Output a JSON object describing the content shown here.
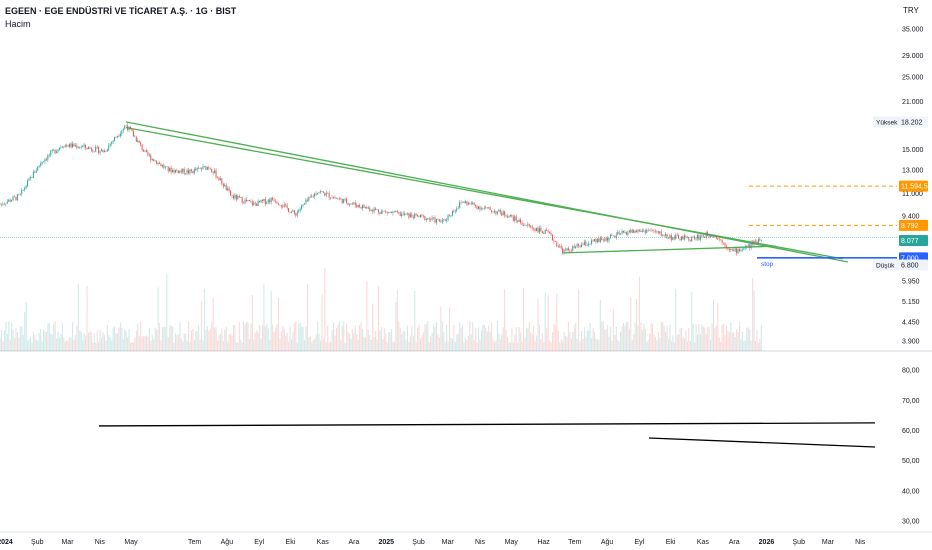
{
  "header": {
    "symbol_title": "EGEEN · EGE ENDÜSTRİ VE TİCARET A.Ş. · 1G · BIST",
    "volume_label": "Hacim",
    "currency": "TRY"
  },
  "chart_data": {
    "type": "candlestick",
    "scale": "log",
    "price_axis_ticks": [
      35000,
      29000,
      25000,
      21000,
      15000,
      13000,
      11000,
      9400,
      8077,
      6800,
      5950,
      5150,
      4450,
      3900
    ],
    "price_axis_tick_labels": [
      "35.000",
      "29.000",
      "25.000",
      "21.000",
      "15.000",
      "13.000",
      "11.000",
      "9.400",
      "8.077",
      "6.800",
      "5.950",
      "5.150",
      "4.450",
      "3.900"
    ],
    "x_axis_labels": [
      "2024",
      "Şub",
      "Mar",
      "Nis",
      "May",
      "Tem",
      "Ağu",
      "Eyl",
      "Eki",
      "Kas",
      "Ara",
      "2025",
      "Şub",
      "Mar",
      "Nis",
      "May",
      "Haz",
      "Tem",
      "Ağu",
      "Eyl",
      "Eki",
      "Kas",
      "Ara",
      "2026",
      "Şub",
      "Mar",
      "Nis"
    ],
    "price_path": [
      {
        "date": "2024-01-01",
        "price": 10200
      },
      {
        "date": "2024-01-20",
        "price": 10800
      },
      {
        "date": "2024-02-10",
        "price": 13800
      },
      {
        "date": "2024-03-01",
        "price": 15500
      },
      {
        "date": "2024-03-20",
        "price": 15300
      },
      {
        "date": "2024-04-10",
        "price": 14800
      },
      {
        "date": "2024-05-01",
        "price": 17800
      },
      {
        "date": "2024-05-20",
        "price": 14500
      },
      {
        "date": "2024-06-10",
        "price": 13000
      },
      {
        "date": "2024-07-01",
        "price": 12800
      },
      {
        "date": "2024-07-20",
        "price": 13300
      },
      {
        "date": "2024-08-10",
        "price": 10800
      },
      {
        "date": "2024-09-01",
        "price": 10200
      },
      {
        "date": "2024-09-20",
        "price": 10600
      },
      {
        "date": "2024-10-10",
        "price": 9500
      },
      {
        "date": "2024-11-01",
        "price": 11200
      },
      {
        "date": "2024-11-20",
        "price": 10600
      },
      {
        "date": "2024-12-10",
        "price": 10100
      },
      {
        "date": "2025-01-01",
        "price": 9700
      },
      {
        "date": "2025-01-20",
        "price": 9500
      },
      {
        "date": "2025-02-10",
        "price": 9300
      },
      {
        "date": "2025-03-01",
        "price": 9000
      },
      {
        "date": "2025-03-20",
        "price": 10400
      },
      {
        "date": "2025-04-10",
        "price": 9900
      },
      {
        "date": "2025-05-01",
        "price": 9500
      },
      {
        "date": "2025-05-20",
        "price": 8800
      },
      {
        "date": "2025-06-10",
        "price": 8300
      },
      {
        "date": "2025-06-25",
        "price": 7300
      },
      {
        "date": "2025-07-15",
        "price": 7700
      },
      {
        "date": "2025-08-05",
        "price": 8000
      },
      {
        "date": "2025-08-25",
        "price": 8400
      },
      {
        "date": "2025-09-15",
        "price": 8500
      },
      {
        "date": "2025-10-05",
        "price": 8100
      },
      {
        "date": "2025-10-25",
        "price": 8000
      },
      {
        "date": "2025-11-15",
        "price": 8300
      },
      {
        "date": "2025-12-05",
        "price": 7300
      },
      {
        "date": "2025-12-20",
        "price": 7600
      },
      {
        "date": "2026-01-01",
        "price": 8077
      }
    ],
    "price_labels": [
      {
        "text": "Yüksek",
        "value": "18.202",
        "price": 18202,
        "style": "gray"
      },
      {
        "text": "",
        "value": "11.594,5",
        "price": 11594.5,
        "style": "orange"
      },
      {
        "text": "",
        "value": "8.792",
        "price": 8792,
        "style": "orange"
      },
      {
        "text": "",
        "value": "8.077",
        "price": 8077,
        "style": "green"
      },
      {
        "text": "",
        "value": "7.000",
        "price": 7000,
        "style": "blue"
      },
      {
        "text": "Düşük",
        "value": "6.800",
        "price": 6800,
        "style": "gray"
      }
    ],
    "annotations": {
      "stop_label": "stop",
      "stop_price": 7000,
      "target_levels": [
        11594.5,
        8792
      ],
      "trendlines": [
        {
          "color": "#4caf50",
          "from": {
            "date": "2024-05-01",
            "price": 18202
          },
          "to": {
            "date": "2026-03-25",
            "price": 6800
          }
        },
        {
          "color": "#4caf50",
          "from": {
            "date": "2024-05-01",
            "price": 17500
          },
          "to": {
            "date": "2026-03-20",
            "price": 6950
          }
        },
        {
          "color": "#4caf50",
          "from": {
            "date": "2025-06-25",
            "price": 7250
          },
          "to": {
            "date": "2026-01-15",
            "price": 7600
          }
        }
      ]
    },
    "oscillator": {
      "y_ticks": [
        80,
        70,
        60,
        50,
        40,
        30
      ],
      "y_tick_labels": [
        "80,00",
        "70,00",
        "60,00",
        "50,00",
        "40,00",
        "30,00"
      ],
      "y_range": [
        27,
        86
      ],
      "lines": [
        {
          "color": "#000000",
          "from": {
            "date": "2024-04-05",
            "value": 61.5
          },
          "to": {
            "date": "2026-04-20",
            "value": 62.5
          }
        },
        {
          "color": "#000000",
          "from": {
            "date": "2025-09-15",
            "value": 57.5
          },
          "to": {
            "date": "2026-04-20",
            "value": 54.5
          }
        }
      ]
    },
    "colors": {
      "up": "#26a69a",
      "down": "#ef5350",
      "trendline": "#4caf50",
      "target": "#ff9800",
      "stop": "#2962ff"
    }
  }
}
